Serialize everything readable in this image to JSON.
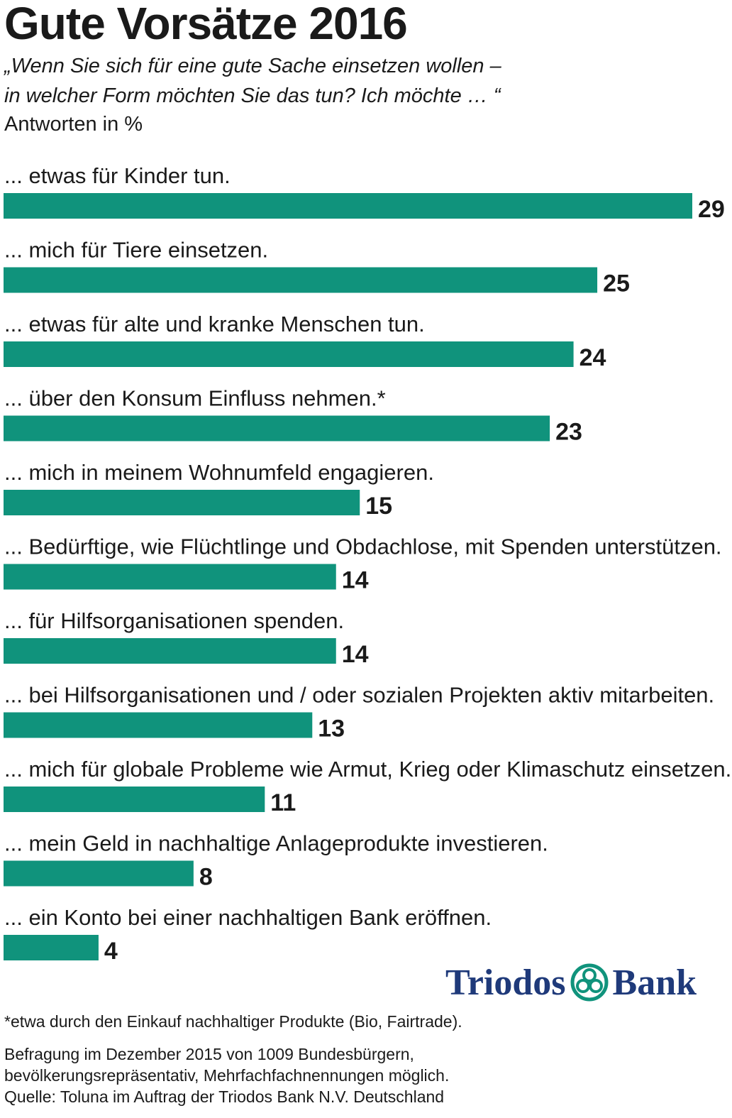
{
  "chart_data": {
    "type": "bar",
    "orientation": "horizontal",
    "title": "Gute Vorsätze 2016",
    "subtitle": "„Wenn Sie sich für eine gute Sache einsetzen wollen –\nin welcher Form möchten Sie das tun? Ich möchte … “",
    "unit_label": "Antworten in %",
    "categories": [
      "... etwas für Kinder tun.",
      "... mich für Tiere einsetzen.",
      "... etwas für alte und kranke Menschen tun.",
      "... über den Konsum Einfluss nehmen.*",
      "... mich in meinem Wohnumfeld engagieren.",
      "... Bedürftige, wie Flüchtlinge und Obdachlose, mit Spenden unterstützen.",
      "... für Hilfsorganisationen spenden.",
      "... bei Hilfsorganisationen und / oder sozialen Projekten aktiv mitarbeiten.",
      "... mich für globale Probleme wie Armut, Krieg oder Klimaschutz einsetzen.",
      "... mein Geld in nachhaltige Anlageprodukte investieren.",
      "... ein Konto bei einer nachhaltigen Bank eröffnen."
    ],
    "values": [
      29,
      25,
      24,
      23,
      15,
      14,
      14,
      13,
      11,
      8,
      4
    ],
    "xlim": [
      0,
      29
    ],
    "grid": false,
    "bar_color": "#10937c"
  },
  "logo": {
    "left": "Triodos",
    "right": "Bank",
    "color": "#1f3a7a",
    "mark_color": "#10937c"
  },
  "footnote": "*etwa durch den Einkauf nachhaltiger Produkte (Bio, Fairtrade).",
  "survey_lines": [
    "Befragung im Dezember 2015 von 1009 Bundesbürgern,",
    "bevölkerungsrepräsentativ, Mehrfachfachnennungen möglich.",
    "Quelle: Toluna im Auftrag der Triodos Bank N.V. Deutschland"
  ]
}
